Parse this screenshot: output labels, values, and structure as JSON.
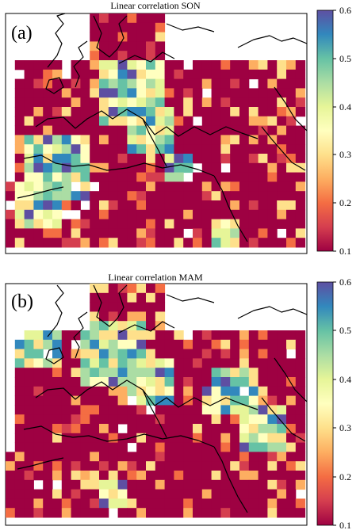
{
  "panels": [
    {
      "id": "a",
      "label": "(a)",
      "title": "Linear correlation SON",
      "colorbar": {
        "ticks": [
          "0.6",
          "0.5",
          "0.4",
          "0.3",
          "0.2",
          "0.1"
        ],
        "min": 0.1,
        "max": 0.6
      }
    },
    {
      "id": "b",
      "label": "(b)",
      "title": "Linear correlation  MAM",
      "colorbar": {
        "ticks": [
          "0.6",
          "0.5",
          "0.4",
          "0.3",
          "0.2",
          "0.1"
        ],
        "min": 0.1,
        "max": 0.6
      }
    }
  ],
  "colormap": "Spectral",
  "colors": {
    "low": "#9e0142",
    "mid": "#ffffbf",
    "high": "#5e4fa2",
    "coastline": "#000000",
    "background": "#ffffff"
  }
}
